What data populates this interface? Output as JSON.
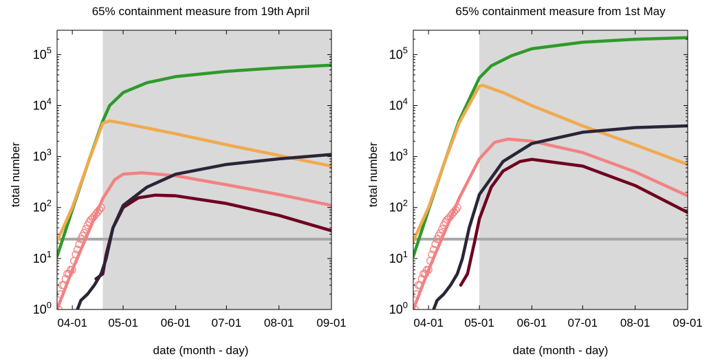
{
  "colors": {
    "shade": "#d9d9d9",
    "green": "#2e9a2a",
    "orange": "#f0aa50",
    "pink": "#f28282",
    "maroon": "#6e0020",
    "navy": "#2a2538",
    "gray": "#a6a6a6"
  },
  "chart_data": [
    {
      "type": "line",
      "title": "65% containment measure from 19th April",
      "xlabel": "date (month - day)",
      "ylabel": "total number",
      "yscale": "log",
      "ylim": [
        1,
        300000
      ],
      "xlim": [
        "2020-03-23",
        "2020-09-01"
      ],
      "x_ticks": [
        "04-01",
        "05-01",
        "06-01",
        "07-01",
        "08-01",
        "09-01"
      ],
      "y_ticks": [
        "10^0",
        "10^1",
        "10^2",
        "10^3",
        "10^4",
        "10^5"
      ],
      "shaded_region": [
        "2020-04-19",
        "2020-09-01"
      ],
      "reference_line": 24,
      "series": [
        {
          "color": "green",
          "x": [
            "2020-03-23",
            "2020-04-01",
            "2020-04-10",
            "2020-04-19",
            "2020-04-23",
            "2020-05-01",
            "2020-05-15",
            "2020-06-01",
            "2020-07-01",
            "2020-08-01",
            "2020-09-01"
          ],
          "y": [
            11,
            90,
            700,
            5000,
            10000,
            18000,
            28000,
            37000,
            47000,
            55000,
            62000
          ]
        },
        {
          "color": "orange",
          "x": [
            "2020-03-23",
            "2020-04-01",
            "2020-04-10",
            "2020-04-19",
            "2020-04-23",
            "2020-05-01",
            "2020-06-01",
            "2020-07-01",
            "2020-08-01",
            "2020-09-01"
          ],
          "y": [
            22,
            100,
            700,
            4500,
            5000,
            4500,
            2800,
            1700,
            1050,
            650
          ]
        },
        {
          "color": "pink",
          "x": [
            "2020-03-23",
            "2020-04-01",
            "2020-04-10",
            "2020-04-19",
            "2020-04-26",
            "2020-05-01",
            "2020-05-12",
            "2020-06-01",
            "2020-07-01",
            "2020-08-01",
            "2020-09-01"
          ],
          "y": [
            1,
            6,
            30,
            150,
            350,
            450,
            480,
            420,
            280,
            180,
            110
          ]
        },
        {
          "color": "maroon",
          "x": [
            "2020-04-15",
            "2020-04-19",
            "2020-04-21",
            "2020-04-25",
            "2020-05-01",
            "2020-05-10",
            "2020-05-20",
            "2020-06-01",
            "2020-07-01",
            "2020-08-01",
            "2020-09-01"
          ],
          "y": [
            4,
            5,
            12,
            40,
            100,
            155,
            175,
            170,
            120,
            70,
            35
          ]
        },
        {
          "color": "navy",
          "x": [
            "2020-04-04",
            "2020-04-06",
            "2020-04-10",
            "2020-04-14",
            "2020-04-18",
            "2020-04-21",
            "2020-04-25",
            "2020-05-01",
            "2020-05-15",
            "2020-06-01",
            "2020-07-01",
            "2020-08-01",
            "2020-09-01"
          ],
          "y": [
            1,
            1.5,
            2,
            3,
            5,
            10,
            40,
            110,
            250,
            450,
            700,
            900,
            1100
          ]
        }
      ],
      "observed_points": {
        "color": "pink",
        "x": [
          "2020-03-24",
          "2020-03-25",
          "2020-03-26",
          "2020-03-27",
          "2020-03-28",
          "2020-03-29",
          "2020-03-30",
          "2020-03-31",
          "2020-04-01",
          "2020-04-02",
          "2020-04-03",
          "2020-04-04",
          "2020-04-05",
          "2020-04-06",
          "2020-04-07",
          "2020-04-08",
          "2020-04-09",
          "2020-04-10",
          "2020-04-11",
          "2020-04-12",
          "2020-04-13",
          "2020-04-14",
          "2020-04-15",
          "2020-04-16",
          "2020-04-17",
          "2020-04-18"
        ],
        "y": [
          1,
          2,
          3,
          3,
          4,
          5,
          5,
          6,
          6,
          9,
          12,
          15,
          19,
          24,
          28,
          32,
          38,
          45,
          52,
          58,
          62,
          68,
          75,
          82,
          90,
          100
        ]
      }
    },
    {
      "type": "line",
      "title": "65% containment measure from 1st May",
      "xlabel": "date (month - day)",
      "ylabel": "total number",
      "yscale": "log",
      "ylim": [
        1,
        300000
      ],
      "xlim": [
        "2020-03-23",
        "2020-09-01"
      ],
      "x_ticks": [
        "04-01",
        "05-01",
        "06-01",
        "07-01",
        "08-01",
        "09-01"
      ],
      "y_ticks": [
        "10^0",
        "10^1",
        "10^2",
        "10^3",
        "10^4",
        "10^5"
      ],
      "shaded_region": [
        "2020-05-01",
        "2020-09-01"
      ],
      "reference_line": 24,
      "series": [
        {
          "color": "green",
          "x": [
            "2020-03-23",
            "2020-04-01",
            "2020-04-10",
            "2020-04-19",
            "2020-05-01",
            "2020-05-08",
            "2020-05-20",
            "2020-06-01",
            "2020-07-01",
            "2020-08-01",
            "2020-09-01"
          ],
          "y": [
            11,
            90,
            700,
            5000,
            35000,
            60000,
            95000,
            130000,
            175000,
            200000,
            215000
          ]
        },
        {
          "color": "orange",
          "x": [
            "2020-03-23",
            "2020-04-01",
            "2020-04-10",
            "2020-04-19",
            "2020-05-01",
            "2020-05-03",
            "2020-05-15",
            "2020-06-01",
            "2020-07-01",
            "2020-08-01",
            "2020-09-01"
          ],
          "y": [
            22,
            100,
            700,
            4500,
            24000,
            25000,
            18000,
            10000,
            4000,
            1700,
            700
          ]
        },
        {
          "color": "pink",
          "x": [
            "2020-03-23",
            "2020-04-01",
            "2020-04-10",
            "2020-04-19",
            "2020-05-01",
            "2020-05-10",
            "2020-05-18",
            "2020-06-01",
            "2020-07-01",
            "2020-08-01",
            "2020-09-01"
          ],
          "y": [
            1,
            6,
            30,
            150,
            900,
            1900,
            2200,
            2000,
            1200,
            500,
            170
          ]
        },
        {
          "color": "maroon",
          "x": [
            "2020-04-20",
            "2020-04-24",
            "2020-04-28",
            "2020-05-01",
            "2020-05-08",
            "2020-05-15",
            "2020-05-25",
            "2020-06-01",
            "2020-07-01",
            "2020-08-01",
            "2020-09-01"
          ],
          "y": [
            3,
            5,
            20,
            60,
            250,
            520,
            800,
            880,
            650,
            270,
            80
          ]
        },
        {
          "color": "navy",
          "x": [
            "2020-04-04",
            "2020-04-06",
            "2020-04-10",
            "2020-04-14",
            "2020-04-18",
            "2020-04-21",
            "2020-04-25",
            "2020-05-01",
            "2020-05-15",
            "2020-06-01",
            "2020-07-01",
            "2020-08-01",
            "2020-09-01"
          ],
          "y": [
            1,
            1.5,
            2,
            3,
            5,
            10,
            40,
            180,
            800,
            1800,
            3000,
            3700,
            4000
          ]
        }
      ],
      "observed_points": {
        "color": "pink",
        "x": [
          "2020-03-24",
          "2020-03-25",
          "2020-03-26",
          "2020-03-27",
          "2020-03-28",
          "2020-03-29",
          "2020-03-30",
          "2020-03-31",
          "2020-04-01",
          "2020-04-02",
          "2020-04-03",
          "2020-04-04",
          "2020-04-05",
          "2020-04-06",
          "2020-04-07",
          "2020-04-08",
          "2020-04-09",
          "2020-04-10",
          "2020-04-11",
          "2020-04-12",
          "2020-04-13",
          "2020-04-14",
          "2020-04-15",
          "2020-04-16",
          "2020-04-17",
          "2020-04-18"
        ],
        "y": [
          1,
          2,
          3,
          3,
          4,
          5,
          5,
          6,
          6,
          9,
          12,
          15,
          19,
          24,
          28,
          32,
          38,
          45,
          52,
          58,
          62,
          68,
          75,
          82,
          90,
          100
        ]
      }
    }
  ]
}
